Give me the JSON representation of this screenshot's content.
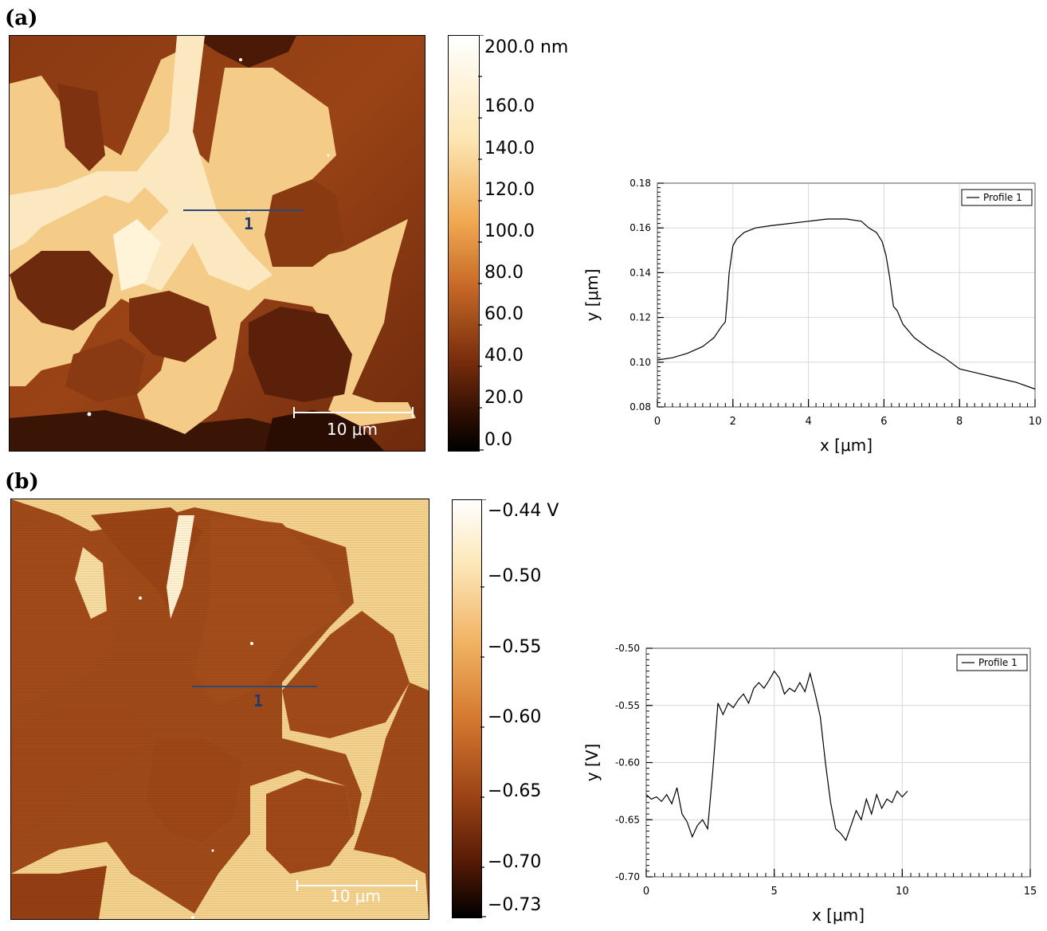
{
  "panels": {
    "a": {
      "label": "(a)",
      "colorbar_labels": [
        "200.0 nm",
        "160.0",
        "140.0",
        "120.0",
        "100.0",
        "80.0",
        "60.0",
        "40.0",
        "20.0",
        "0.0"
      ],
      "scale_bar": "10 μm",
      "profile_marker": "1"
    },
    "b": {
      "label": "(b)",
      "colorbar_labels": [
        "−0.44 V",
        "−0.50",
        "−0.55",
        "−0.60",
        "−0.65",
        "−0.70",
        "−0.73"
      ],
      "scale_bar": "10 μm",
      "profile_marker": "1"
    }
  },
  "colors": {
    "afm_dark": "#2a0d02",
    "afm_mid": "#8c3a10",
    "afm_light": "#fff8e8",
    "profile_line": "#2b4a7a"
  },
  "chart_data": [
    {
      "type": "line",
      "title": "",
      "xlabel": "x [μm]",
      "ylabel": "y [μm]",
      "xlim": [
        0,
        10
      ],
      "ylim": [
        0.08,
        0.18
      ],
      "xticks": [
        0,
        2,
        4,
        6,
        8,
        10
      ],
      "yticks": [
        0.08,
        0.1,
        0.12,
        0.14,
        0.16,
        0.18
      ],
      "xtick_labels": [
        "0",
        "2",
        "4",
        "6",
        "8",
        "10"
      ],
      "ytick_labels": [
        "0.08",
        "0.10",
        "0.12",
        "0.14",
        "0.16",
        "0.18"
      ],
      "grid": true,
      "legend_position": "top-right",
      "series": [
        {
          "name": "Profile 1",
          "x": [
            0,
            0.4,
            0.8,
            1.2,
            1.5,
            1.7,
            1.8,
            1.85,
            1.9,
            2.0,
            2.1,
            2.3,
            2.6,
            3.0,
            3.5,
            4.0,
            4.5,
            5.0,
            5.4,
            5.6,
            5.8,
            5.95,
            6.05,
            6.15,
            6.25,
            6.35,
            6.5,
            6.8,
            7.2,
            7.6,
            8.0,
            8.5,
            9.0,
            9.5,
            10.0
          ],
          "y": [
            0.101,
            0.102,
            0.104,
            0.107,
            0.111,
            0.116,
            0.118,
            0.128,
            0.14,
            0.152,
            0.155,
            0.158,
            0.16,
            0.161,
            0.162,
            0.163,
            0.164,
            0.164,
            0.163,
            0.16,
            0.158,
            0.154,
            0.148,
            0.138,
            0.125,
            0.123,
            0.117,
            0.111,
            0.106,
            0.102,
            0.097,
            0.095,
            0.093,
            0.091,
            0.088
          ]
        }
      ]
    },
    {
      "type": "line",
      "title": "",
      "xlabel": "x [μm]",
      "ylabel": "y [V]",
      "xlim": [
        0,
        15
      ],
      "ylim": [
        -0.7,
        -0.5
      ],
      "xticks": [
        0,
        5,
        10,
        15
      ],
      "yticks": [
        -0.7,
        -0.65,
        -0.6,
        -0.55,
        -0.5
      ],
      "xtick_labels": [
        "0",
        "5",
        "10",
        "15"
      ],
      "ytick_labels": [
        "-0.70",
        "-0.65",
        "-0.60",
        "-0.55",
        "-0.50"
      ],
      "grid": true,
      "legend_position": "top-right",
      "series": [
        {
          "name": "Profile 1",
          "x": [
            0,
            0.2,
            0.4,
            0.6,
            0.8,
            1.0,
            1.2,
            1.4,
            1.6,
            1.8,
            2.0,
            2.2,
            2.4,
            2.6,
            2.8,
            3.0,
            3.2,
            3.4,
            3.6,
            3.8,
            4.0,
            4.2,
            4.4,
            4.6,
            4.8,
            5.0,
            5.2,
            5.4,
            5.6,
            5.8,
            6.0,
            6.2,
            6.4,
            6.6,
            6.8,
            7.0,
            7.2,
            7.4,
            7.6,
            7.8,
            8.0,
            8.2,
            8.4,
            8.6,
            8.8,
            9.0,
            9.2,
            9.4,
            9.6,
            9.8,
            10.0,
            10.2
          ],
          "y": [
            -0.628,
            -0.632,
            -0.63,
            -0.634,
            -0.628,
            -0.636,
            -0.622,
            -0.645,
            -0.652,
            -0.665,
            -0.655,
            -0.65,
            -0.658,
            -0.608,
            -0.548,
            -0.558,
            -0.548,
            -0.552,
            -0.545,
            -0.54,
            -0.548,
            -0.535,
            -0.53,
            -0.535,
            -0.528,
            -0.52,
            -0.526,
            -0.54,
            -0.535,
            -0.538,
            -0.53,
            -0.538,
            -0.522,
            -0.54,
            -0.56,
            -0.6,
            -0.635,
            -0.658,
            -0.662,
            -0.668,
            -0.655,
            -0.642,
            -0.65,
            -0.632,
            -0.645,
            -0.628,
            -0.64,
            -0.632,
            -0.635,
            -0.625,
            -0.63,
            -0.625
          ]
        }
      ]
    }
  ]
}
